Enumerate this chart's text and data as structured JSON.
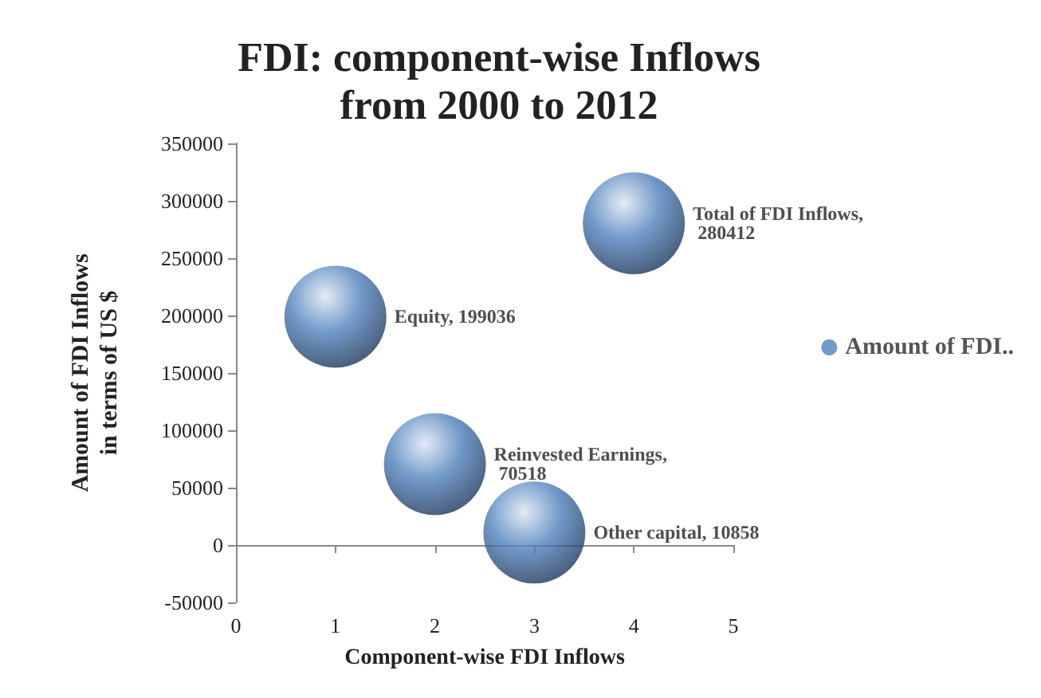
{
  "chart_data": {
    "type": "bubble",
    "title": "FDI: component-wise Inflows\nfrom 2000 to 2012",
    "xlabel": "Component-wise FDI Inflows",
    "ylabel": "Amount of FDI Inflows\nin terms of US $",
    "x": [
      1,
      2,
      3,
      4
    ],
    "series": [
      {
        "name": "Amount of FDI..",
        "color": "#4f81bd",
        "values": [
          199036,
          70518,
          10858,
          280412
        ],
        "sizes": [
          1,
          1,
          1,
          1
        ],
        "value_labels": [
          "Equity, 199036",
          "Reinvested Earnings, 70518",
          "Other capital, 10858",
          "Total of FDI Inflows, 280412"
        ]
      }
    ],
    "xlim": [
      0,
      5
    ],
    "xticks": [
      0,
      1,
      2,
      3,
      4,
      5
    ],
    "ylim": [
      -50000,
      350000
    ],
    "yticks": [
      -50000,
      0,
      50000,
      100000,
      150000,
      200000,
      250000,
      300000,
      350000
    ],
    "legend": "right",
    "marker": "circle"
  }
}
